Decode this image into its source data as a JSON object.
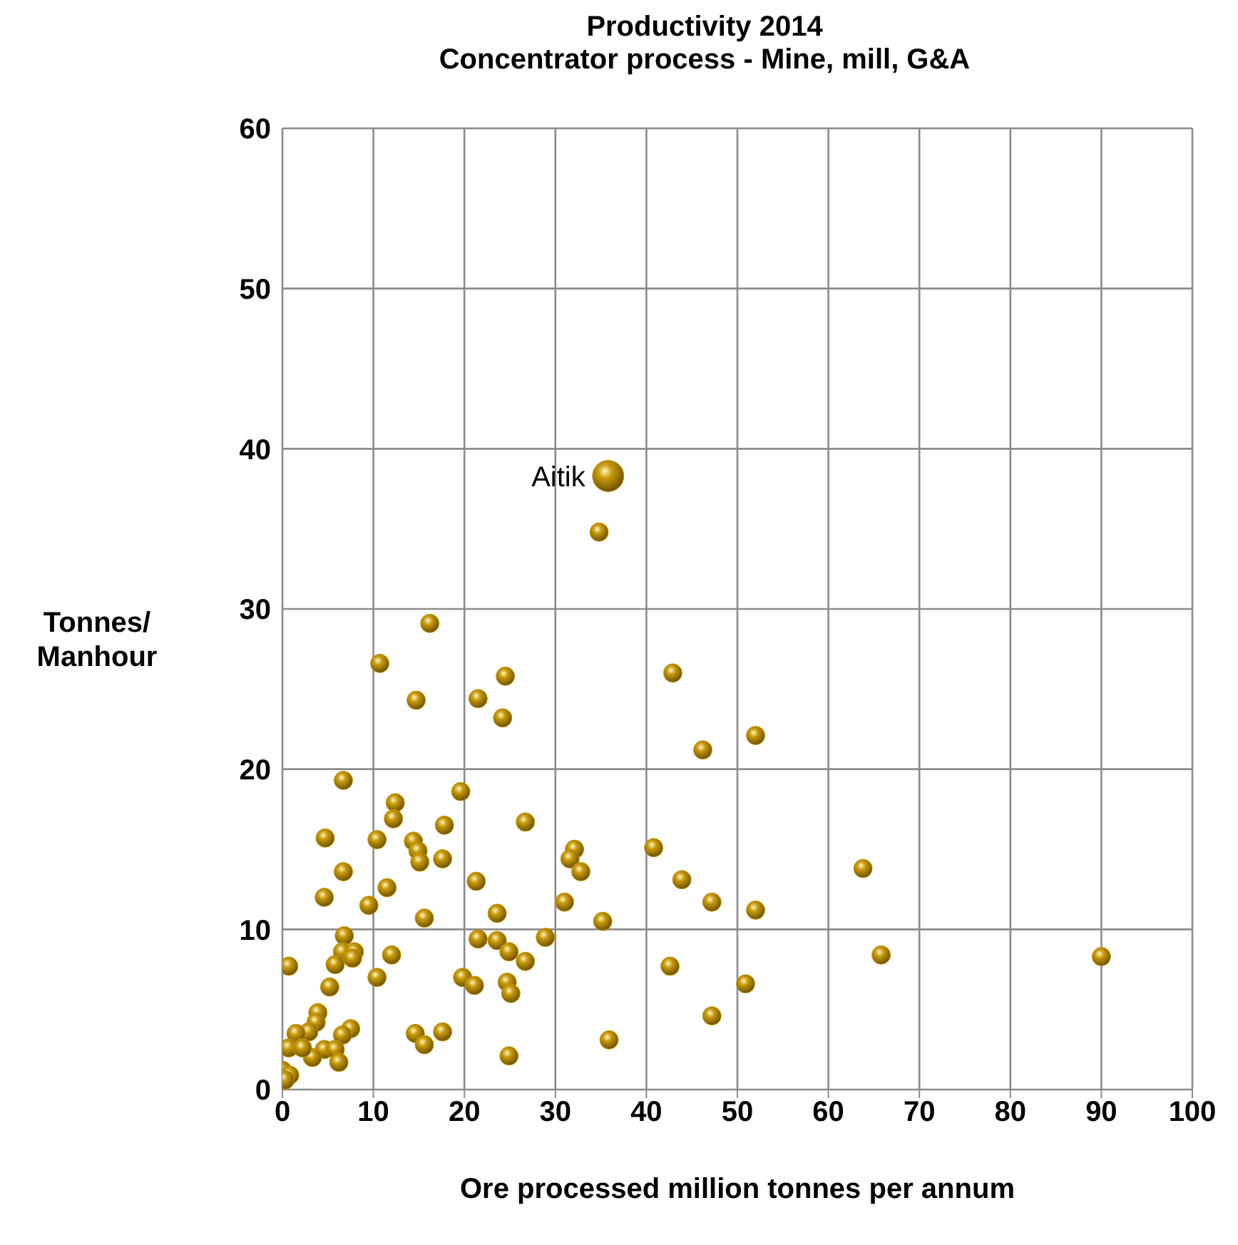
{
  "chart_data": {
    "type": "scatter",
    "title": "Productivity 2014",
    "subtitle": "Concentrator process - Mine, mill, G&A",
    "xlabel": "Ore processed million tonnes per annum",
    "ylabel": "Tonnes/ Manhour",
    "xlim": [
      0,
      100
    ],
    "xticks": [
      0,
      10,
      20,
      30,
      40,
      50,
      60,
      70,
      80,
      90,
      100
    ],
    "ylim": [
      0,
      60
    ],
    "yticks": [
      0,
      10,
      20,
      30,
      40,
      50,
      60
    ],
    "grid": true,
    "legend": false,
    "marker": "circle",
    "annotations": [
      {
        "text": "Aitik",
        "x": 35.8,
        "y": 38.3
      }
    ],
    "series": [
      {
        "color": "#c99a0a",
        "x": [
          6.7,
          19.6,
          12.4,
          12.2,
          26.7,
          4.7,
          10.4,
          17.8,
          14.4,
          14.9,
          15.1,
          17.6,
          32.1,
          31.6,
          32.8,
          40.8,
          43.9,
          47.2,
          6.7,
          11.5,
          21.3,
          4.6,
          9.5,
          23.6,
          15.6,
          31.0,
          35.2,
          6.8,
          28.9,
          21.5,
          23.6,
          24.9,
          26.7,
          6.6,
          7.9,
          7.7,
          5.8,
          12.0,
          0.7,
          42.6,
          10.4,
          19.8,
          21.1,
          24.7,
          25.1,
          5.2,
          47.2,
          3.9,
          3.7,
          2.9,
          1.5,
          7.5,
          6.6,
          14.6,
          17.6,
          15.6,
          35.9,
          24.9,
          0.7,
          4.6,
          5.8,
          3.3,
          6.2,
          0,
          0.8,
          0.3,
          2.2,
          34.8,
          16.2,
          10.7,
          42.9,
          24.5,
          14.7,
          21.5,
          24.2,
          46.2,
          52.0,
          63.8,
          52.0,
          65.8,
          90.0,
          50.9
        ],
        "values": [
          19.3,
          18.6,
          17.9,
          16.9,
          16.7,
          15.7,
          15.6,
          16.5,
          15.5,
          14.9,
          14.2,
          14.4,
          15.0,
          14.4,
          13.6,
          15.1,
          13.1,
          11.7,
          13.6,
          12.6,
          13.0,
          12.0,
          11.5,
          11.0,
          10.7,
          11.7,
          10.5,
          9.6,
          9.5,
          9.4,
          9.3,
          8.6,
          8.0,
          8.6,
          8.6,
          8.2,
          7.8,
          8.4,
          7.7,
          7.7,
          7.0,
          7.0,
          6.5,
          6.7,
          6.0,
          6.4,
          4.6,
          4.8,
          4.2,
          3.6,
          3.5,
          3.8,
          3.4,
          3.5,
          3.6,
          2.8,
          3.1,
          2.1,
          2.6,
          2.5,
          2.5,
          2.0,
          1.7,
          1.2,
          0.9,
          0.6,
          2.6,
          34.8,
          29.1,
          26.6,
          26.0,
          25.8,
          24.3,
          24.4,
          23.2,
          21.2,
          22.1,
          13.8,
          11.2,
          8.4,
          8.3,
          6.6
        ]
      },
      {
        "color": "#c99a0a",
        "x": [
          35.8
        ],
        "values": [
          38.3
        ]
      }
    ]
  }
}
